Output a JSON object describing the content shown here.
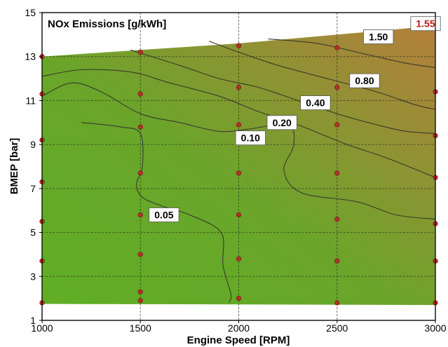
{
  "chart_data": {
    "type": "contour",
    "title": "NOx Emissions [g/kWh]",
    "xlabel": "Engine Speed [RPM]",
    "ylabel": "BMEP [bar]",
    "xlim": [
      1000,
      3000
    ],
    "ylim": [
      1,
      15
    ],
    "xticks": [
      "1000",
      "1500",
      "2000",
      "2500",
      "3000"
    ],
    "yticks": [
      "1",
      "3",
      "5",
      "7",
      "9",
      "11",
      "13",
      "15"
    ],
    "grid": true,
    "color_low": "#5fae25",
    "color_high": "#b57e3c",
    "contour_levels": [
      {
        "label": "0.05",
        "value": 0.05,
        "label_at": [
          1620,
          5.8
        ],
        "points": [
          [
            1200,
            10.0
          ],
          [
            1400,
            9.8
          ],
          [
            1500,
            9.5
          ],
          [
            1510,
            8.0
          ],
          [
            1480,
            7.2
          ],
          [
            1510,
            6.6
          ],
          [
            1610,
            6.2
          ],
          [
            1750,
            5.8
          ],
          [
            1910,
            5.0
          ],
          [
            1920,
            3.5
          ],
          [
            1960,
            2.2
          ],
          [
            1950,
            1.8
          ]
        ]
      },
      {
        "label": "0.10",
        "value": 0.1,
        "label_at": [
          2060,
          9.3
        ],
        "points": [
          [
            1000,
            11.2
          ],
          [
            1150,
            11.8
          ],
          [
            1300,
            11.4
          ],
          [
            1500,
            10.4
          ],
          [
            1700,
            10.0
          ],
          [
            1900,
            9.6
          ],
          [
            2050,
            9.7
          ],
          [
            2250,
            9.9
          ],
          [
            2280,
            9.0
          ],
          [
            2230,
            7.8
          ],
          [
            2320,
            6.8
          ],
          [
            2600,
            6.4
          ],
          [
            2800,
            5.8
          ],
          [
            3000,
            5.6
          ]
        ]
      },
      {
        "label": "0.20",
        "value": 0.2,
        "label_at": [
          2220,
          10.0
        ],
        "points": [
          [
            1000,
            12.1
          ],
          [
            1200,
            12.4
          ],
          [
            1450,
            12.3
          ],
          [
            1650,
            11.8
          ],
          [
            1900,
            11.2
          ],
          [
            2100,
            10.5
          ],
          [
            2300,
            9.9
          ],
          [
            2550,
            9.0
          ],
          [
            2750,
            8.4
          ],
          [
            3000,
            7.5
          ]
        ]
      },
      {
        "label": "0.40",
        "value": 0.4,
        "label_at": [
          2390,
          10.9
        ],
        "points": [
          [
            1450,
            13.3
          ],
          [
            1700,
            12.6
          ],
          [
            1900,
            12.0
          ],
          [
            2100,
            11.6
          ],
          [
            2300,
            11.0
          ],
          [
            2500,
            10.4
          ],
          [
            2700,
            9.9
          ],
          [
            2850,
            9.6
          ],
          [
            3000,
            9.5
          ]
        ]
      },
      {
        "label": "0.80",
        "value": 0.8,
        "label_at": [
          2640,
          11.9
        ],
        "points": [
          [
            1850,
            13.7
          ],
          [
            2000,
            13.2
          ],
          [
            2200,
            12.6
          ],
          [
            2450,
            12.0
          ],
          [
            2700,
            11.4
          ],
          [
            2900,
            10.8
          ],
          [
            3000,
            10.6
          ]
        ]
      },
      {
        "label": "1.50",
        "value": 1.5,
        "label_at": [
          2710,
          13.9
        ],
        "points": [
          [
            2150,
            13.8
          ],
          [
            2400,
            13.6
          ],
          [
            2650,
            13.1
          ],
          [
            2850,
            12.7
          ],
          [
            3000,
            12.5
          ]
        ]
      }
    ],
    "max_label": {
      "label": "1.55",
      "at": [
        2950,
        14.5
      ]
    },
    "sample_points": [
      [
        1000,
        1.8
      ],
      [
        1000,
        3.7
      ],
      [
        1000,
        5.5
      ],
      [
        1000,
        7.3
      ],
      [
        1000,
        9.2
      ],
      [
        1000,
        11.3
      ],
      [
        1000,
        13.0
      ],
      [
        1500,
        1.9
      ],
      [
        1500,
        2.3
      ],
      [
        1500,
        4.0
      ],
      [
        1500,
        5.8
      ],
      [
        1500,
        7.7
      ],
      [
        1500,
        9.8
      ],
      [
        1500,
        11.3
      ],
      [
        1500,
        13.2
      ],
      [
        2000,
        2.0
      ],
      [
        2000,
        3.8
      ],
      [
        2000,
        5.8
      ],
      [
        2000,
        7.7
      ],
      [
        2000,
        9.9
      ],
      [
        2000,
        11.6
      ],
      [
        2000,
        13.5
      ],
      [
        2500,
        1.8
      ],
      [
        2500,
        3.7
      ],
      [
        2500,
        5.6
      ],
      [
        2500,
        7.7
      ],
      [
        2500,
        9.9
      ],
      [
        2500,
        11.6
      ],
      [
        2500,
        13.4
      ],
      [
        3000,
        1.8
      ],
      [
        3000,
        3.7
      ],
      [
        3000,
        5.4
      ],
      [
        3000,
        7.5
      ],
      [
        3000,
        9.4
      ],
      [
        3000,
        11.4
      ],
      [
        3000,
        14.3
      ]
    ],
    "region_boundary": {
      "top": [
        [
          1000,
          13.0
        ],
        [
          1500,
          13.3
        ],
        [
          2000,
          13.6
        ],
        [
          2500,
          14.0
        ],
        [
          3000,
          14.4
        ]
      ],
      "bottom": [
        [
          1000,
          1.75
        ],
        [
          3000,
          1.7
        ]
      ]
    }
  }
}
